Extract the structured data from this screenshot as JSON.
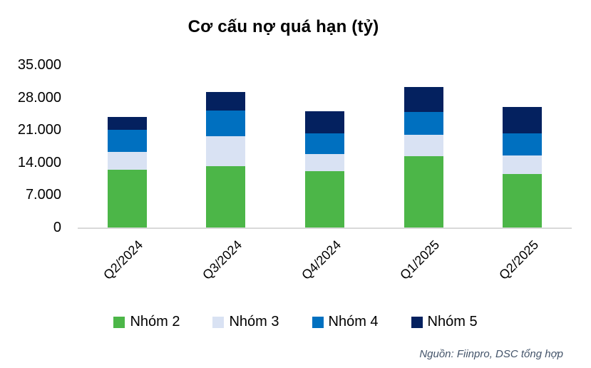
{
  "source": "Nguồn: Fiinpro, DSC tổng hợp",
  "colors": {
    "axis_line": "#D9D9D9",
    "title_text": "#000000",
    "tick_text": "#000000",
    "source_text": "#44546A"
  },
  "chart_data": {
    "type": "bar",
    "stacked": true,
    "title": "Cơ cấu nợ quá hạn (tỷ)",
    "categories": [
      "Q2/2024",
      "Q3/2024",
      "Q4/2024",
      "Q1/2025",
      "Q2/2025"
    ],
    "series": [
      {
        "name": "Nhóm 2",
        "color": "#4CB648",
        "values": [
          12500,
          13200,
          12200,
          15400,
          11500
        ]
      },
      {
        "name": "Nhóm 3",
        "color": "#D9E2F3",
        "values": [
          3700,
          6500,
          3600,
          4600,
          4000
        ]
      },
      {
        "name": "Nhóm 4",
        "color": "#0070C0",
        "values": [
          4900,
          5500,
          4500,
          4900,
          4800
        ]
      },
      {
        "name": "Nhóm 5",
        "color": "#04215F",
        "values": [
          2700,
          4000,
          4700,
          5400,
          5700
        ]
      }
    ],
    "totals": [
      23800,
      29200,
      25000,
      30300,
      26000
    ],
    "ylim": [
      0,
      35000
    ],
    "y_ticks": [
      {
        "label": "0",
        "value": 0
      },
      {
        "label": "7.000",
        "value": 7000
      },
      {
        "label": "14.000",
        "value": 14000
      },
      {
        "label": "21.000",
        "value": 21000
      },
      {
        "label": "28.000",
        "value": 28000
      },
      {
        "label": "35.000",
        "value": 35000
      }
    ],
    "grid": false,
    "xlabel": "",
    "ylabel": "",
    "legend_position": "bottom",
    "x_label_rotation_deg": -45
  }
}
